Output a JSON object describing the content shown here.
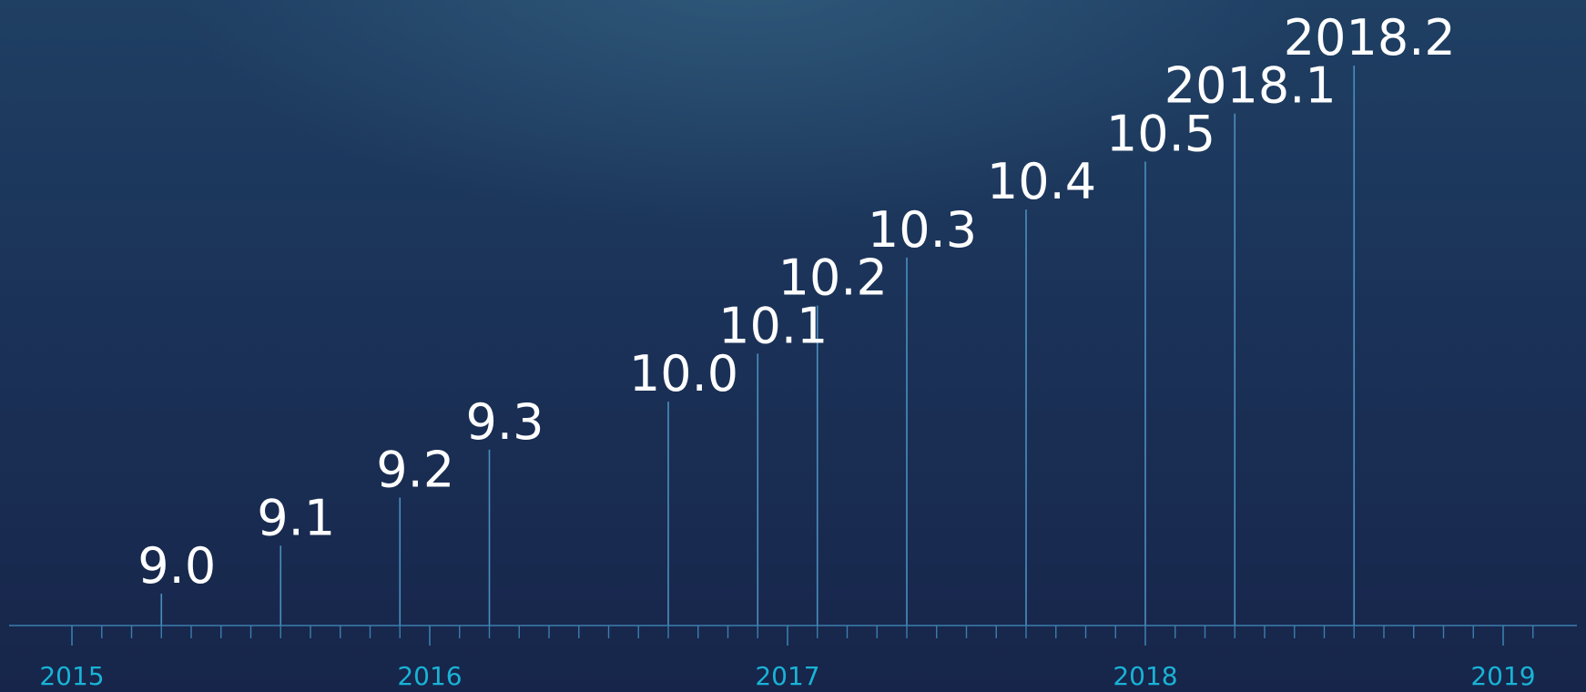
{
  "chart_data": {
    "type": "bar",
    "title": "",
    "xlabel": "",
    "ylabel": "",
    "x_axis_ticks": [
      "2015",
      "2016",
      "2017",
      "2018",
      "2019"
    ],
    "xlim": [
      "2015",
      "2019"
    ],
    "grid": false,
    "series": [
      {
        "points": [
          {
            "label": "9.0",
            "x": "2015-04",
            "y": 1
          },
          {
            "label": "9.1",
            "x": "2015-08",
            "y": 2
          },
          {
            "label": "9.2",
            "x": "2015-12",
            "y": 3
          },
          {
            "label": "9.3",
            "x": "2016-03",
            "y": 4
          },
          {
            "label": "10.0",
            "x": "2016-09",
            "y": 5
          },
          {
            "label": "10.1",
            "x": "2016-12",
            "y": 6
          },
          {
            "label": "10.2",
            "x": "2017-02",
            "y": 7
          },
          {
            "label": "10.3",
            "x": "2017-05",
            "y": 8
          },
          {
            "label": "10.4",
            "x": "2017-09",
            "y": 9
          },
          {
            "label": "10.5",
            "x": "2018-01",
            "y": 10
          },
          {
            "label": "2018.1",
            "x": "2018-04",
            "y": 11
          },
          {
            "label": "2018.2",
            "x": "2018-08",
            "y": 12
          }
        ]
      }
    ]
  },
  "colors": {
    "label": "#ffffff",
    "stem": "#4a8fbf",
    "axis": "#3a7fae",
    "year": "#19b3d6"
  }
}
